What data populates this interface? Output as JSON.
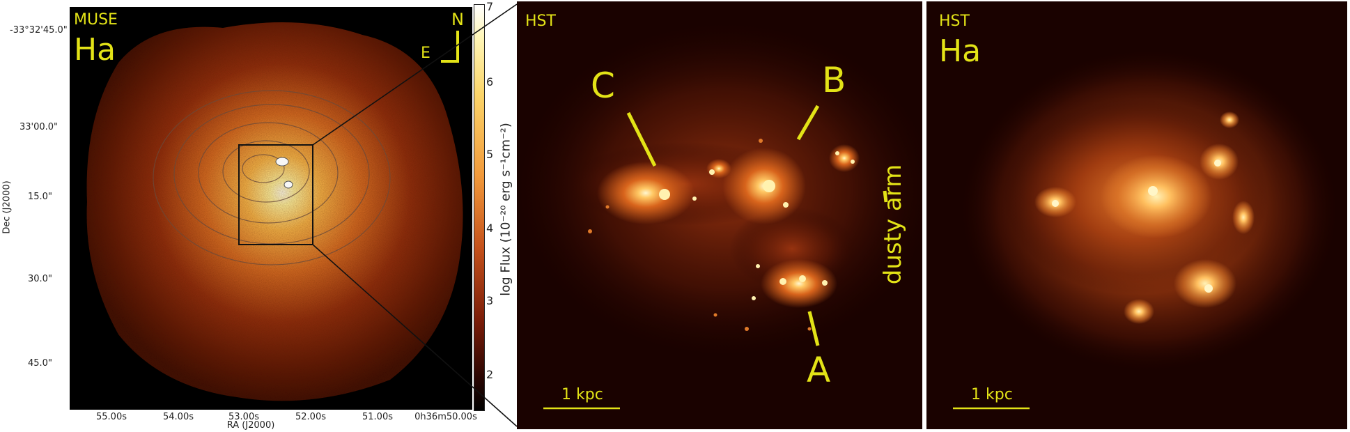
{
  "panel_muse": {
    "instrument": "MUSE",
    "line": "Ha",
    "compass_n": "N",
    "compass_e": "E",
    "dec_ticks": [
      "-33°32'45.0\"",
      "33'00.0\"",
      "15.0\"",
      "30.0\"",
      "45.0\""
    ],
    "ra_ticks": [
      "55.00s",
      "54.00s",
      "53.00s",
      "52.00s",
      "51.00s",
      "0h36m50.00s"
    ],
    "x_axis_title": "RA (J2000)",
    "y_axis_title": "Dec (J2000)"
  },
  "colorbar": {
    "ticks": [
      "7",
      "6",
      "5",
      "4",
      "3",
      "2"
    ],
    "label": "log Flux (10⁻²⁰ erg s⁻¹cm⁻²)"
  },
  "panel_hst_continuum": {
    "instrument": "HST",
    "label_a": "A",
    "label_b": "B",
    "label_c": "C",
    "label_arm": "dusty arm",
    "scalebar": "1 kpc"
  },
  "panel_hst_ha": {
    "instrument": "HST",
    "line": "Ha",
    "scalebar": "1 kpc"
  },
  "colors": {
    "annotation": "#e3e317",
    "background": "#1a0200"
  }
}
